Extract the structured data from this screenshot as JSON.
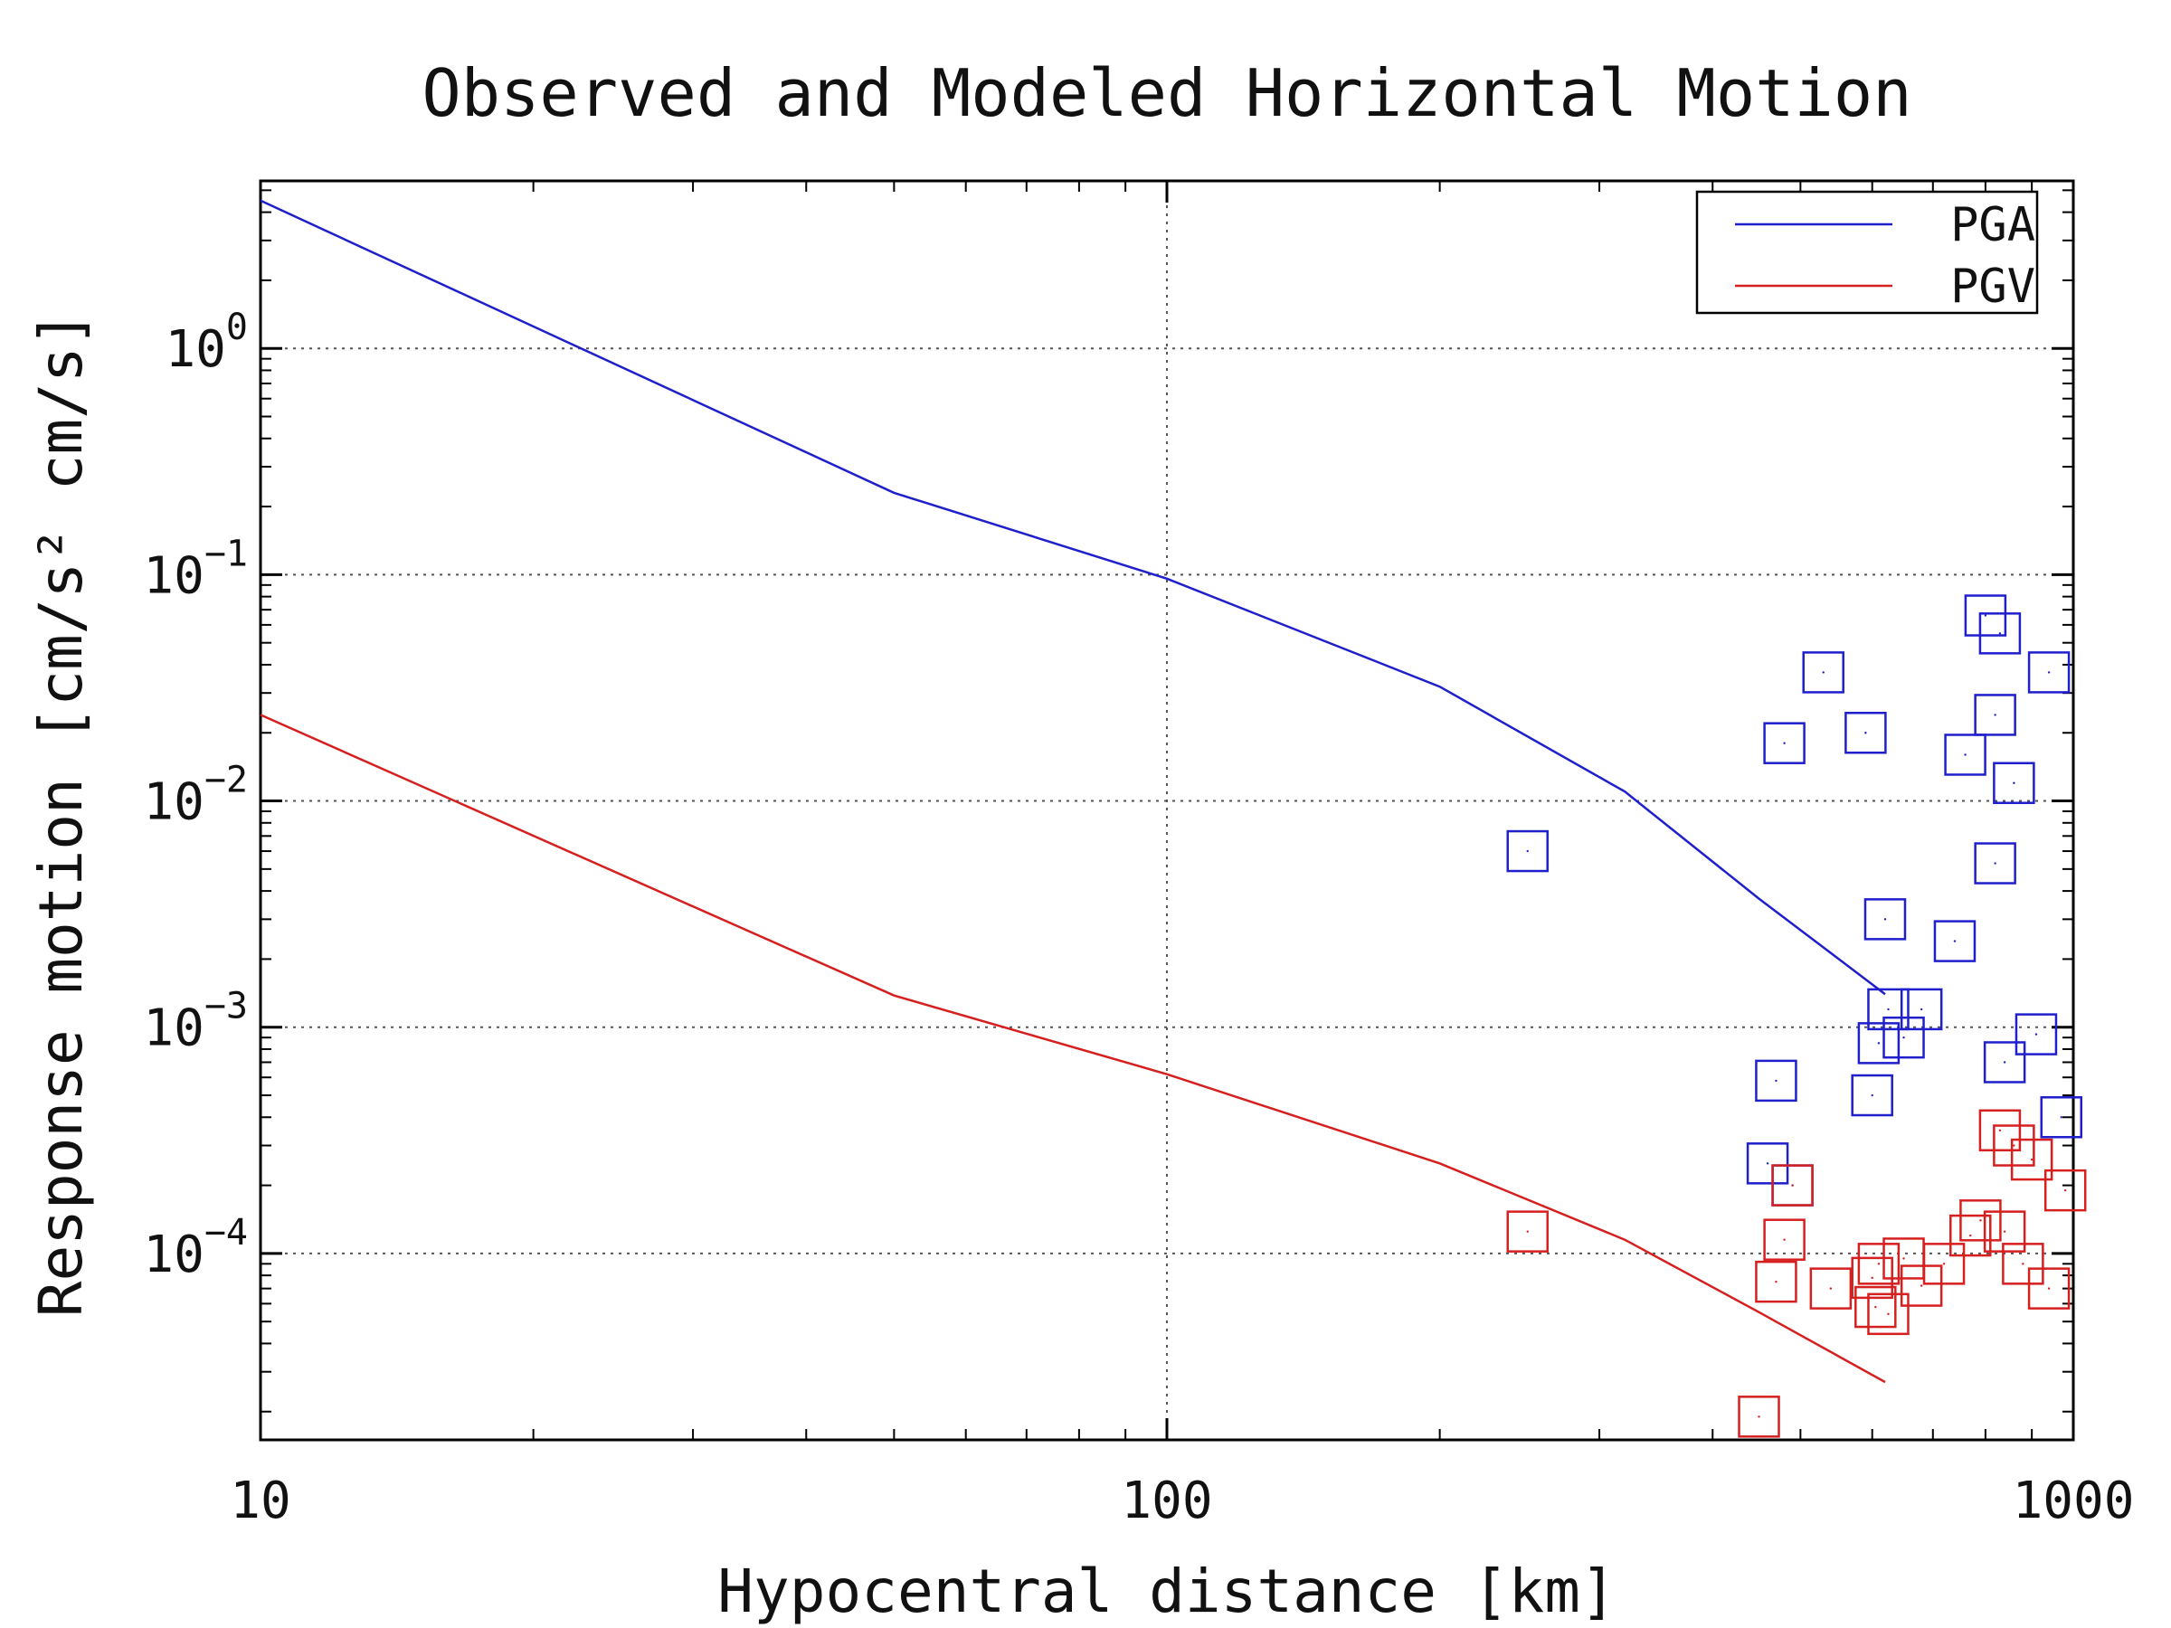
{
  "chart_data": {
    "type": "scatter",
    "title": "Observed and Modeled Horizontal Motion",
    "xlabel": "Hypocentral distance [km]",
    "ylabel": "Response motion [cm/s² cm/s]",
    "x_scale": "log",
    "y_scale": "log",
    "xlim": [
      10,
      1000
    ],
    "ylim": [
      1.5e-05,
      5.5
    ],
    "grid": true,
    "legend_position": "top-right",
    "x_ticks": [
      {
        "value": 10,
        "label": "10"
      },
      {
        "value": 100,
        "label": "100"
      },
      {
        "value": 1000,
        "label": "1000"
      }
    ],
    "y_ticks": [
      {
        "value": 1,
        "base": "10",
        "exp": "0"
      },
      {
        "value": 0.1,
        "base": "10",
        "exp": "−1"
      },
      {
        "value": 0.01,
        "base": "10",
        "exp": "−2"
      },
      {
        "value": 0.001,
        "base": "10",
        "exp": "−3"
      },
      {
        "value": 0.0001,
        "base": "10",
        "exp": "−4"
      }
    ],
    "series": [
      {
        "name": "PGA",
        "color": "#1f1fcc",
        "mode": "line",
        "x": [
          10,
          50,
          100,
          200,
          320,
          450,
          620
        ],
        "y": [
          4.5,
          0.23,
          0.096,
          0.032,
          0.011,
          0.0037,
          0.0014
        ]
      },
      {
        "name": "PGV",
        "color": "#d62020",
        "mode": "line",
        "x": [
          10,
          50,
          100,
          200,
          320,
          450,
          620
        ],
        "y": [
          0.024,
          0.00138,
          0.00062,
          0.00025,
          0.000115,
          5.5e-05,
          2.7e-05
        ]
      },
      {
        "color": "#1f1fcc",
        "mode": "markers",
        "x": [
          250,
          460,
          470,
          480,
          490,
          530,
          620,
          590,
          610,
          625,
          650,
          680,
          600,
          740,
          760,
          800,
          820,
          820,
          830,
          840,
          860,
          910,
          940,
          970
        ],
        "y": [
          0.006,
          0.00025,
          0.00058,
          0.018,
          0.0002,
          0.037,
          0.003,
          0.02,
          0.00085,
          0.0012,
          0.0009,
          0.0012,
          0.0005,
          0.0024,
          0.016,
          0.066,
          0.024,
          0.0053,
          0.055,
          0.0007,
          0.012,
          0.00093,
          0.037,
          0.0004
        ]
      },
      {
        "color": "#d62020",
        "mode": "markers",
        "x": [
          250,
          450,
          470,
          480,
          490,
          540,
          600,
          605,
          610,
          625,
          650,
          680,
          720,
          770,
          790,
          830,
          840,
          860,
          880,
          900,
          940,
          980
        ],
        "y": [
          0.000125,
          1.9e-05,
          7.5e-05,
          0.000115,
          0.0002,
          7e-05,
          7.8e-05,
          5.8e-05,
          9e-05,
          5.4e-05,
          9.5e-05,
          7.2e-05,
          9e-05,
          0.00012,
          0.00014,
          0.00035,
          0.000125,
          0.0003,
          9e-05,
          0.00026,
          7e-05,
          0.00019
        ]
      }
    ]
  }
}
